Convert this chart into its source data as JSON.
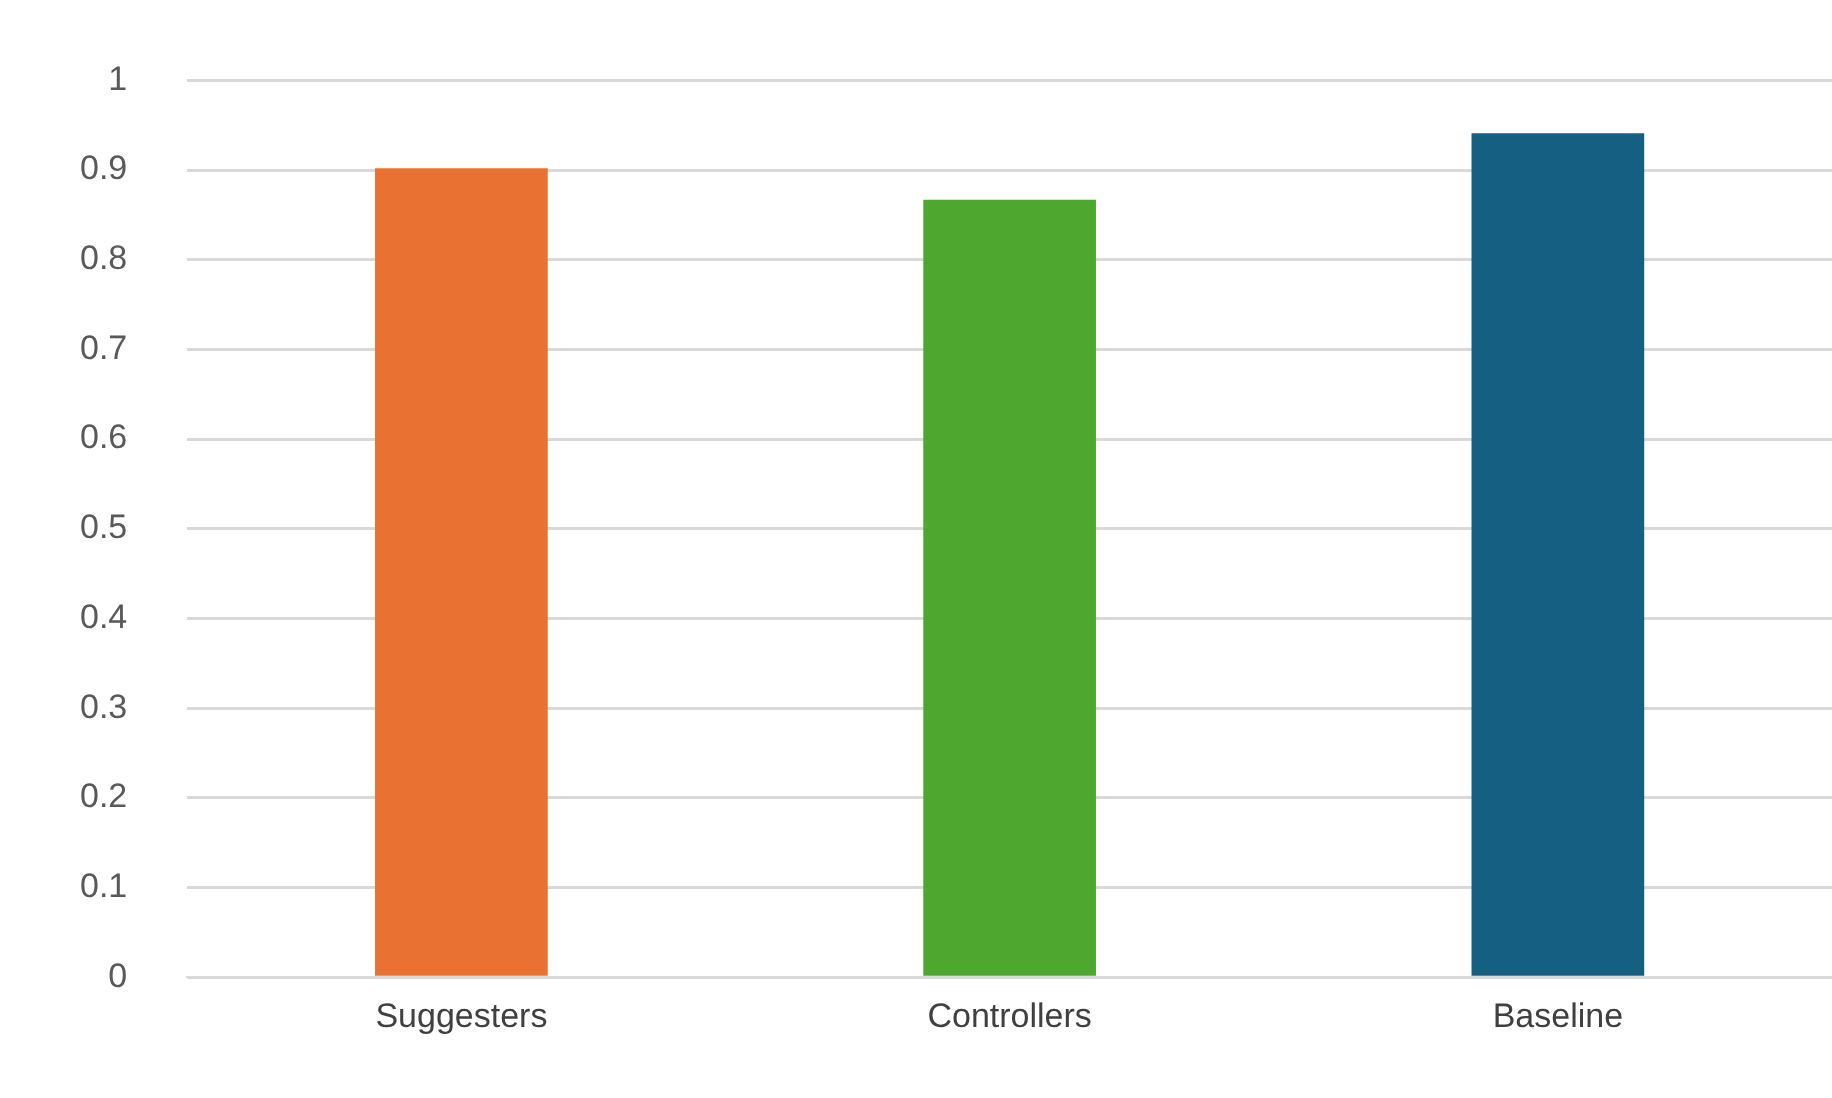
{
  "chart_data": {
    "type": "bar",
    "categories": [
      "Suggesters",
      "Controllers",
      "Baseline"
    ],
    "values": [
      0.902,
      0.867,
      0.941
    ],
    "colors": [
      "#e97132",
      "#4ea72e",
      "#156082"
    ],
    "ylim": [
      0,
      1
    ],
    "yticks": [
      0,
      0.1,
      0.2,
      0.3,
      0.4,
      0.5,
      0.6,
      0.7,
      0.8,
      0.9,
      1
    ],
    "grid": "y"
  }
}
